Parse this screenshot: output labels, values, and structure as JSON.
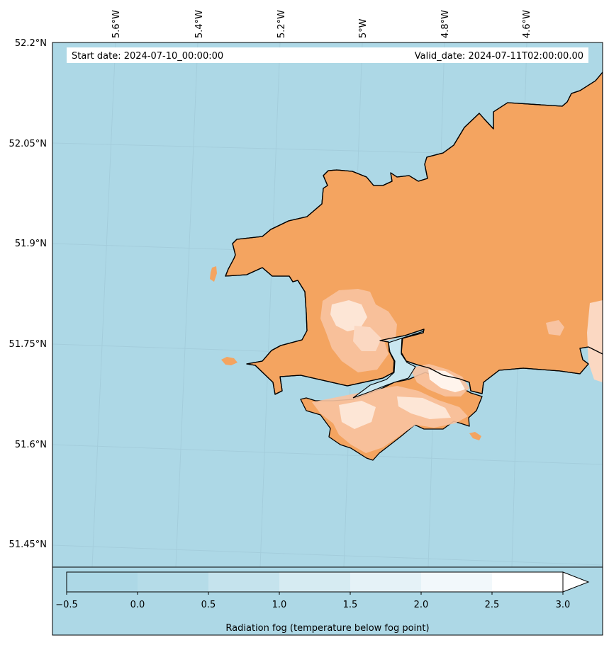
{
  "header": {
    "start_date": "Start date: 2024-07-10_00:00:00",
    "valid_date": "Valid_date: 2024-07-11T02:00:00.00"
  },
  "map": {
    "region": "South-west Wales (Pembrokeshire)",
    "projection_grid": true,
    "longitude_labels": [
      "5.6°W",
      "5.4°W",
      "5.2°W",
      "5°W",
      "4.8°W",
      "4.6°W"
    ],
    "latitude_labels": [
      "52.2°N",
      "52.05°N",
      "51.9°N",
      "51.75°N",
      "51.6°N",
      "51.45°N"
    ],
    "colors": {
      "sea": "#add8e6",
      "land": "#f4a460",
      "coastline": "#000000",
      "gridline": "#9fc7d6"
    }
  },
  "colorbar": {
    "label": "Radiation fog (temperature below fog point)",
    "ticks": [
      "−0.5",
      "0.0",
      "0.5",
      "1.0",
      "1.5",
      "2.0",
      "2.5",
      "3.0"
    ],
    "levels": [
      -0.5,
      0.0,
      0.5,
      1.0,
      1.5,
      2.0,
      2.5,
      3.0
    ],
    "extend": "max",
    "colors": [
      "#add8e6",
      "#b5dce8",
      "#c5e3ed",
      "#d6ebf2",
      "#e5f2f7",
      "#f2f8fb",
      "#ffffff"
    ]
  }
}
